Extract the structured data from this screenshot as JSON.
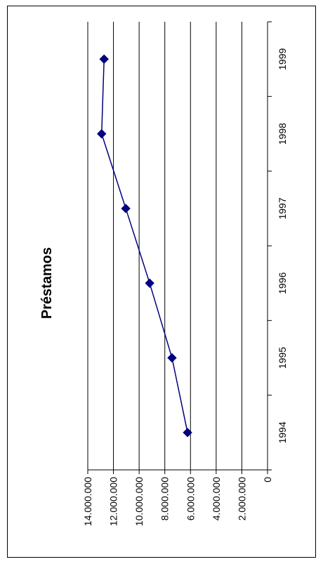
{
  "chart_data": {
    "type": "line",
    "title": "Préstamos",
    "categories": [
      "1994",
      "1995",
      "1996",
      "1997",
      "1998",
      "1999"
    ],
    "series": [
      {
        "values": [
          6230000,
          7440000,
          9180000,
          11040000,
          12920000,
          12730000
        ]
      }
    ],
    "ylim": [
      0,
      14000000
    ],
    "y_ticks": [
      "14.000.000",
      "12.000.000",
      "10.000.000",
      "8.000.000",
      "6.000.000",
      "4.000.000",
      "2.000.000",
      "0"
    ],
    "y_tick_values": [
      14000000,
      12000000,
      10000000,
      8000000,
      6000000,
      4000000,
      2000000,
      0
    ],
    "grid": true,
    "orientation": "rotated-90-clockwise",
    "colors": {
      "line": "#000080",
      "marker": "#000080",
      "grid": "#000000"
    }
  }
}
